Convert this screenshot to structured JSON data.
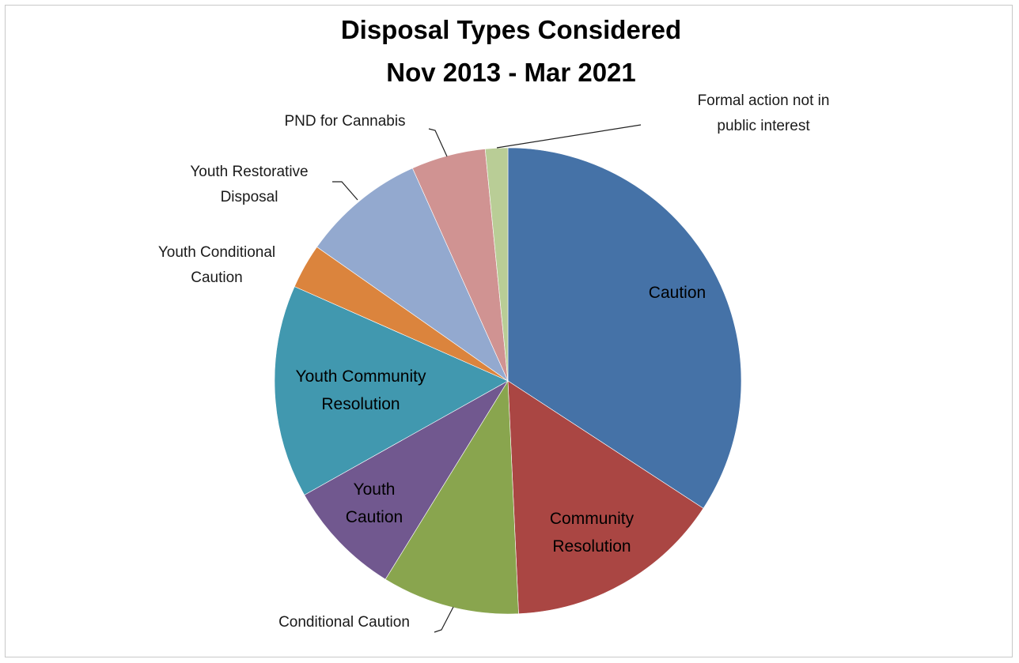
{
  "chart_data": {
    "type": "pie",
    "title_lines": [
      "Disposal Types Considered",
      "Nov 2013 - Mar 2021"
    ],
    "slices": [
      {
        "label_lines": [
          "Caution"
        ],
        "value": 35.2,
        "color": "#4572A7"
      },
      {
        "label_lines": [
          "Community",
          "Resolution"
        ],
        "value": 15.5,
        "color": "#AA4643"
      },
      {
        "label_lines": [
          "Conditional Caution"
        ],
        "value": 9.8,
        "color": "#89A54E"
      },
      {
        "label_lines": [
          "Youth",
          "Caution"
        ],
        "value": 8.3,
        "color": "#71588F"
      },
      {
        "label_lines": [
          "Youth Community",
          "Resolution"
        ],
        "value": 15.2,
        "color": "#4198AF"
      },
      {
        "label_lines": [
          "Youth Conditional",
          "Caution"
        ],
        "value": 3.2,
        "color": "#DB843D"
      },
      {
        "label_lines": [
          "Youth Restorative",
          "Disposal"
        ],
        "value": 8.8,
        "color": "#93A9CF"
      },
      {
        "label_lines": [
          "PND for Cannabis"
        ],
        "value": 5.3,
        "color": "#D09392"
      },
      {
        "label_lines": [
          "Formal action not in",
          "public interest"
        ],
        "value": 1.6,
        "color": "#B9CD96"
      }
    ],
    "start_angle_deg": 0,
    "direction": "clockwise"
  }
}
